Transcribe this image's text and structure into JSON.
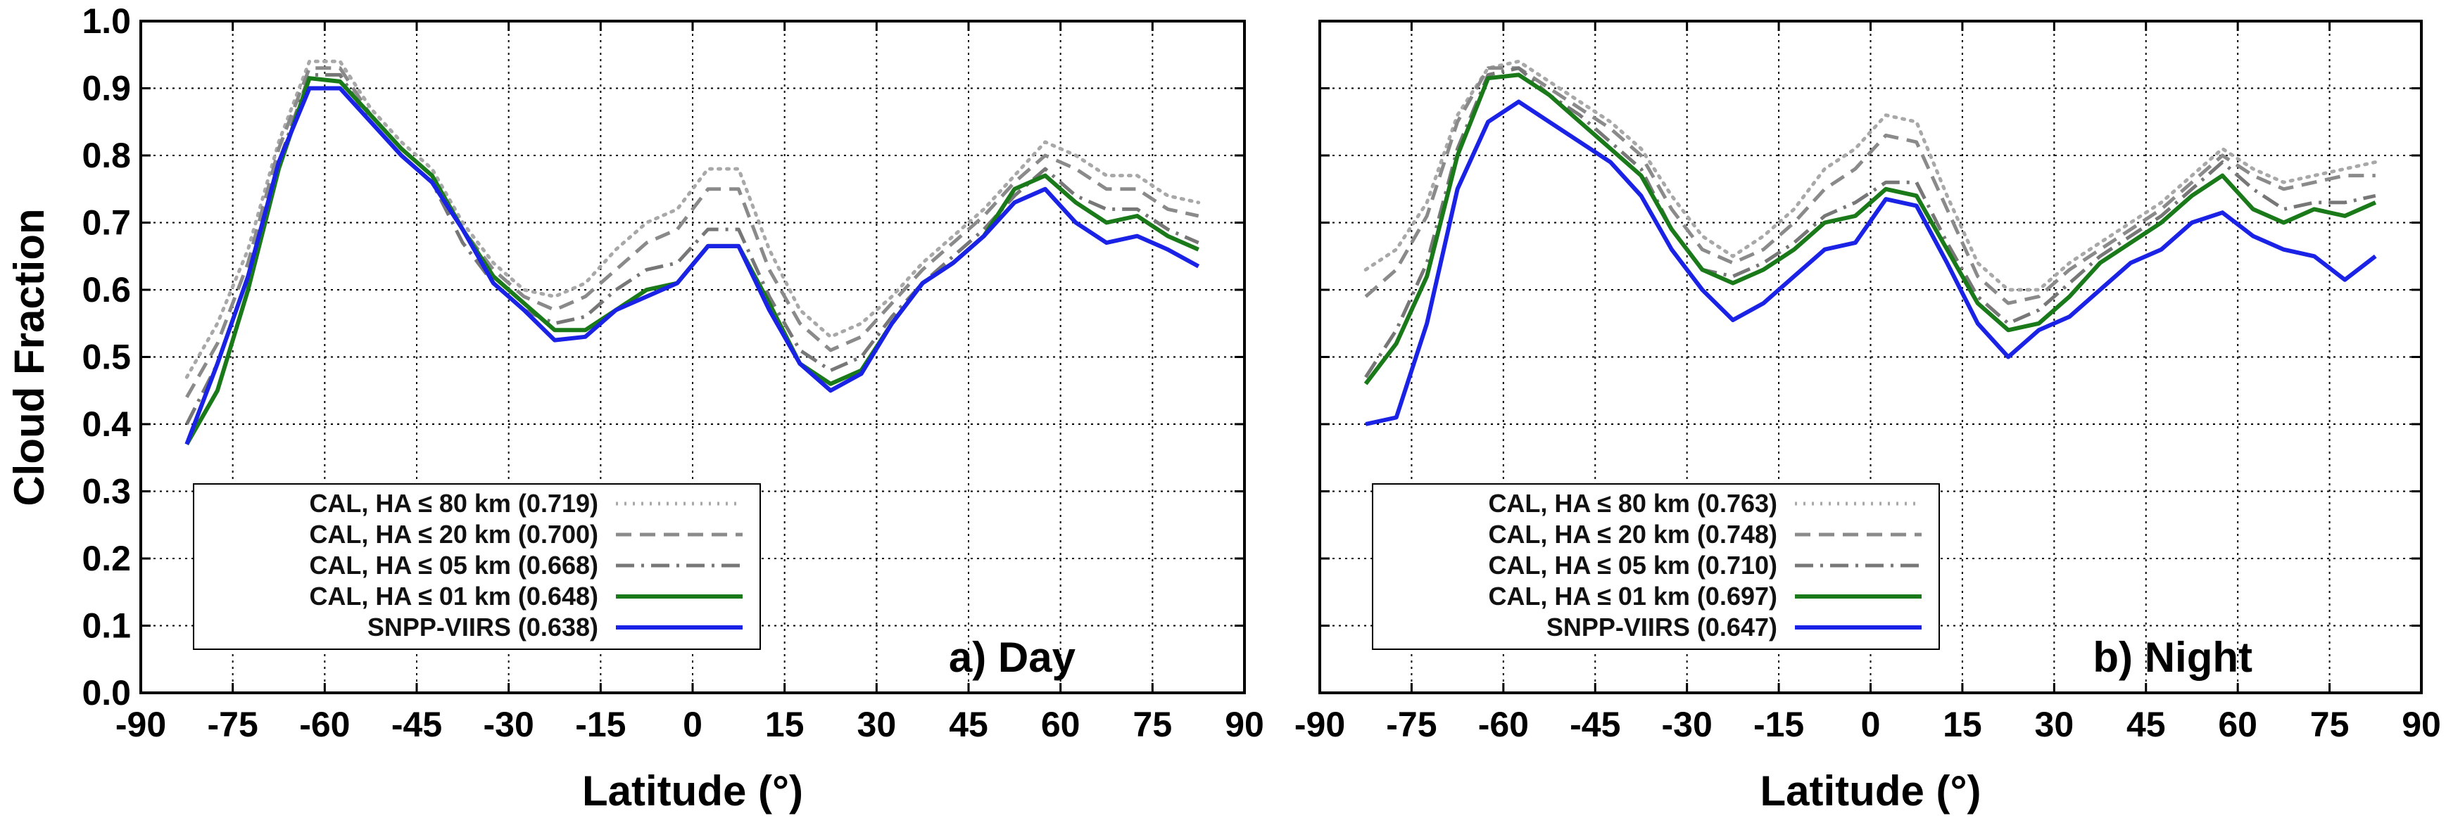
{
  "chart_data": [
    {
      "type": "line",
      "panel_label": "a) Day",
      "xlabel": "Latitude (°)",
      "ylabel": "Cloud Fraction",
      "xlim": [
        -90,
        90
      ],
      "ylim": [
        0.0,
        1.0
      ],
      "xticks": [
        "-90",
        "-75",
        "-60",
        "-45",
        "-30",
        "-15",
        "0",
        "15",
        "30",
        "45",
        "60",
        "75",
        "90"
      ],
      "yticks": [
        "0.0",
        "0.1",
        "0.2",
        "0.3",
        "0.4",
        "0.5",
        "0.6",
        "0.7",
        "0.8",
        "0.9",
        "1.0"
      ],
      "grid": true,
      "legend_position": "bottom-left",
      "x": [
        -82.5,
        -77.5,
        -72.5,
        -67.5,
        -62.5,
        -57.5,
        -52.5,
        -47.5,
        -42.5,
        -37.5,
        -32.5,
        -27.5,
        -22.5,
        -17.5,
        -12.5,
        -7.5,
        -2.5,
        2.5,
        7.5,
        12.5,
        17.5,
        22.5,
        27.5,
        32.5,
        37.5,
        42.5,
        47.5,
        52.5,
        57.5,
        62.5,
        67.5,
        72.5,
        77.5,
        82.5
      ],
      "series": [
        {
          "name": "CAL, HA ≤ 80 km (0.719)",
          "style": "dotted",
          "color": "#a8a8a8",
          "values": [
            0.47,
            0.55,
            0.66,
            0.82,
            0.94,
            0.94,
            0.87,
            0.82,
            0.78,
            0.7,
            0.64,
            0.6,
            0.59,
            0.61,
            0.66,
            0.7,
            0.72,
            0.78,
            0.78,
            0.66,
            0.57,
            0.53,
            0.55,
            0.59,
            0.64,
            0.68,
            0.72,
            0.77,
            0.82,
            0.8,
            0.77,
            0.77,
            0.74,
            0.73
          ]
        },
        {
          "name": "CAL, HA ≤ 20 km (0.700)",
          "style": "dashed",
          "color": "#8a8a8a",
          "values": [
            0.44,
            0.52,
            0.64,
            0.81,
            0.93,
            0.93,
            0.86,
            0.81,
            0.77,
            0.69,
            0.63,
            0.59,
            0.57,
            0.59,
            0.63,
            0.67,
            0.69,
            0.75,
            0.75,
            0.63,
            0.55,
            0.51,
            0.53,
            0.58,
            0.63,
            0.67,
            0.71,
            0.76,
            0.8,
            0.78,
            0.75,
            0.75,
            0.72,
            0.71
          ]
        },
        {
          "name": "CAL, HA ≤ 05 km (0.668)",
          "style": "dashdot",
          "color": "#777777",
          "values": [
            0.4,
            0.49,
            0.62,
            0.79,
            0.92,
            0.92,
            0.85,
            0.8,
            0.76,
            0.67,
            0.61,
            0.57,
            0.55,
            0.56,
            0.6,
            0.63,
            0.64,
            0.69,
            0.69,
            0.59,
            0.51,
            0.48,
            0.5,
            0.56,
            0.61,
            0.65,
            0.69,
            0.74,
            0.78,
            0.74,
            0.72,
            0.72,
            0.69,
            0.67
          ]
        },
        {
          "name": "CAL, HA ≤ 01 km (0.648)",
          "style": "solid",
          "color": "#1a7a1a",
          "values": [
            0.37,
            0.45,
            0.6,
            0.78,
            0.915,
            0.91,
            0.86,
            0.81,
            0.77,
            0.69,
            0.62,
            0.58,
            0.54,
            0.54,
            0.57,
            0.6,
            0.61,
            0.665,
            0.665,
            0.58,
            0.49,
            0.46,
            0.48,
            0.55,
            0.61,
            0.64,
            0.68,
            0.75,
            0.77,
            0.73,
            0.7,
            0.71,
            0.68,
            0.66
          ]
        },
        {
          "name": "SNPP-VIIRS (0.638)",
          "style": "solid",
          "color": "#1a22e6",
          "values": [
            0.37,
            0.49,
            0.62,
            0.79,
            0.9,
            0.9,
            0.85,
            0.8,
            0.76,
            0.69,
            0.61,
            0.57,
            0.525,
            0.53,
            0.57,
            0.59,
            0.61,
            0.665,
            0.665,
            0.57,
            0.49,
            0.45,
            0.475,
            0.55,
            0.61,
            0.64,
            0.68,
            0.73,
            0.75,
            0.7,
            0.67,
            0.68,
            0.66,
            0.635
          ]
        }
      ]
    },
    {
      "type": "line",
      "panel_label": "b) Night",
      "xlabel": "Latitude (°)",
      "ylabel": "",
      "xlim": [
        -90,
        90
      ],
      "ylim": [
        0.0,
        1.0
      ],
      "xticks": [
        "-90",
        "-75",
        "-60",
        "-45",
        "-30",
        "-15",
        "0",
        "15",
        "30",
        "45",
        "60",
        "75",
        "90"
      ],
      "grid": true,
      "legend_position": "bottom-left",
      "x": [
        -82.5,
        -77.5,
        -72.5,
        -67.5,
        -62.5,
        -57.5,
        -52.5,
        -47.5,
        -42.5,
        -37.5,
        -32.5,
        -27.5,
        -22.5,
        -17.5,
        -12.5,
        -7.5,
        -2.5,
        2.5,
        7.5,
        12.5,
        17.5,
        22.5,
        27.5,
        32.5,
        37.5,
        42.5,
        47.5,
        52.5,
        57.5,
        62.5,
        67.5,
        72.5,
        77.5,
        82.5
      ],
      "series": [
        {
          "name": "CAL, HA ≤ 80 km (0.763)",
          "style": "dotted",
          "color": "#a8a8a8",
          "values": [
            0.63,
            0.66,
            0.73,
            0.86,
            0.93,
            0.94,
            0.91,
            0.88,
            0.85,
            0.81,
            0.74,
            0.68,
            0.65,
            0.68,
            0.72,
            0.78,
            0.81,
            0.86,
            0.85,
            0.74,
            0.64,
            0.6,
            0.6,
            0.64,
            0.67,
            0.7,
            0.73,
            0.77,
            0.81,
            0.78,
            0.76,
            0.77,
            0.78,
            0.79
          ]
        },
        {
          "name": "CAL, HA ≤ 20 km (0.748)",
          "style": "dashed",
          "color": "#8a8a8a",
          "values": [
            0.59,
            0.63,
            0.71,
            0.85,
            0.93,
            0.93,
            0.9,
            0.87,
            0.84,
            0.8,
            0.72,
            0.66,
            0.64,
            0.66,
            0.7,
            0.75,
            0.78,
            0.83,
            0.82,
            0.72,
            0.62,
            0.58,
            0.59,
            0.63,
            0.66,
            0.69,
            0.72,
            0.76,
            0.8,
            0.77,
            0.75,
            0.76,
            0.77,
            0.77
          ]
        },
        {
          "name": "CAL, HA ≤ 05 km (0.710)",
          "style": "dashdot",
          "color": "#777777",
          "values": [
            0.47,
            0.54,
            0.64,
            0.81,
            0.92,
            0.93,
            0.89,
            0.86,
            0.82,
            0.78,
            0.69,
            0.63,
            0.62,
            0.64,
            0.67,
            0.71,
            0.73,
            0.76,
            0.76,
            0.67,
            0.59,
            0.55,
            0.57,
            0.61,
            0.65,
            0.68,
            0.71,
            0.75,
            0.79,
            0.75,
            0.72,
            0.73,
            0.73,
            0.74
          ]
        },
        {
          "name": "CAL, HA ≤ 01 km (0.697)",
          "style": "solid",
          "color": "#1a7a1a",
          "values": [
            0.46,
            0.52,
            0.62,
            0.8,
            0.915,
            0.92,
            0.89,
            0.85,
            0.81,
            0.77,
            0.69,
            0.63,
            0.61,
            0.63,
            0.66,
            0.7,
            0.71,
            0.75,
            0.74,
            0.66,
            0.58,
            0.54,
            0.55,
            0.59,
            0.64,
            0.67,
            0.7,
            0.74,
            0.77,
            0.72,
            0.7,
            0.72,
            0.71,
            0.73
          ]
        },
        {
          "name": "SNPP-VIIRS (0.647)",
          "style": "solid",
          "color": "#1a22e6",
          "values": [
            0.4,
            0.41,
            0.55,
            0.75,
            0.85,
            0.88,
            0.85,
            0.82,
            0.79,
            0.74,
            0.66,
            0.6,
            0.555,
            0.58,
            0.62,
            0.66,
            0.67,
            0.735,
            0.725,
            0.64,
            0.55,
            0.5,
            0.54,
            0.56,
            0.6,
            0.64,
            0.66,
            0.7,
            0.715,
            0.68,
            0.66,
            0.65,
            0.615,
            0.65
          ]
        }
      ]
    }
  ]
}
